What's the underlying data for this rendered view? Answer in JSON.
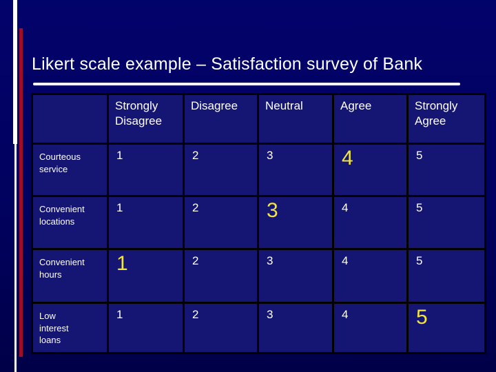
{
  "slide": {
    "title": "Likert scale example – Satisfaction survey of Bank"
  },
  "table": {
    "corner_label": "",
    "columns": [
      "Strongly\nDisagree",
      "Disagree",
      "Neutral",
      "Agree",
      "Strongly\nAgree"
    ],
    "rows": [
      {
        "label": "Courteous\nservice",
        "values": [
          "1",
          "2",
          "3",
          "4",
          "5"
        ],
        "highlight_index": 3
      },
      {
        "label": "Convenient\nlocations",
        "values": [
          "1",
          "2",
          "3",
          "4",
          "5"
        ],
        "highlight_index": 2
      },
      {
        "label": "Convenient\nhours",
        "values": [
          "1",
          "2",
          "3",
          "4",
          "5"
        ],
        "highlight_index": 0
      },
      {
        "label": "Low\ninterest\nloans",
        "values": [
          "1",
          "2",
          "3",
          "4",
          "5"
        ],
        "highlight_index": 4
      }
    ]
  },
  "colors": {
    "background_top": "#02026b",
    "background_bottom": "#000048",
    "cell_background": "#151573",
    "border": "#000000",
    "stripe_white": "#ffffff",
    "stripe_red": "#a00d28",
    "text_white": "#ffffff",
    "highlight_yellow": "#f2e53d"
  }
}
